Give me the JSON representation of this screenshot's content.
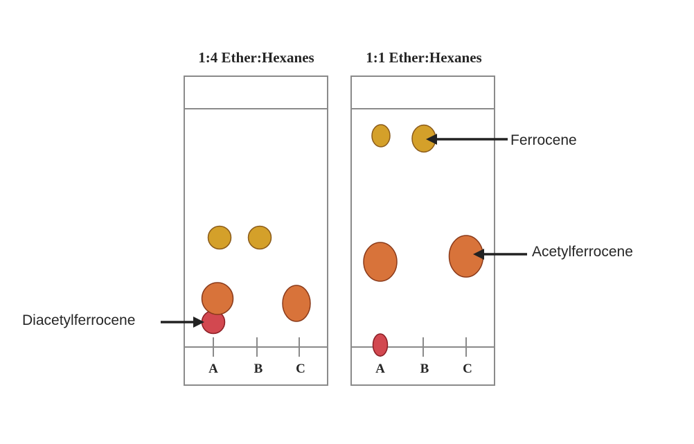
{
  "plates": [
    {
      "title": "1:4 Ether:Hexanes",
      "lanes": [
        "A",
        "B",
        "C"
      ]
    },
    {
      "title": "1:1 Ether:Hexanes",
      "lanes": [
        "A",
        "B",
        "C"
      ]
    }
  ],
  "callouts": {
    "ferrocene": "Ferrocene",
    "acetylferrocene": "Acetylferrocene",
    "diacetylferrocene": "Diacetylferrocene"
  },
  "colors": {
    "ferrocene": "#D4A02A",
    "acetylferrocene": "#D8733A",
    "diacetylferrocene": "#D24850",
    "ferrocene_stroke": "#8A5A1A",
    "acetylferrocene_stroke": "#8A3A1A",
    "diacetylferrocene_stroke": "#8A1E24"
  }
}
